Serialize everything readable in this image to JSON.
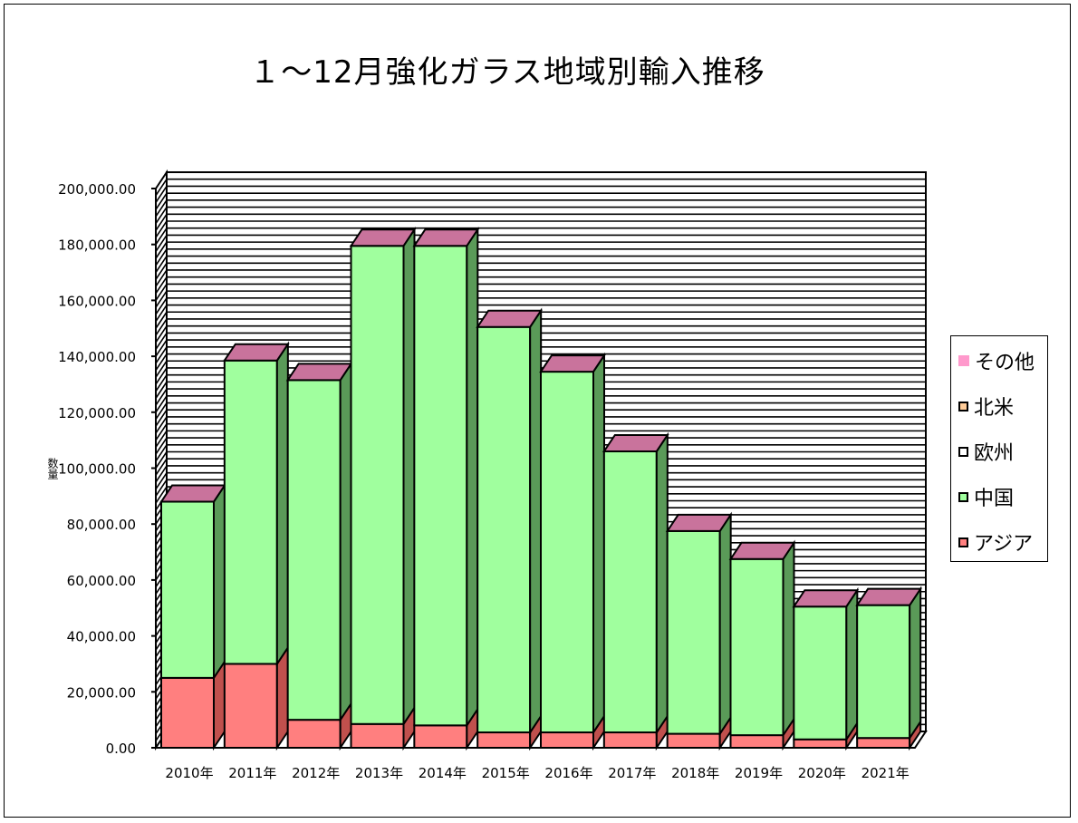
{
  "chart_data": {
    "type": "bar",
    "stacked": true,
    "three_d": true,
    "title": "１～12月強化ガラス地域別輸入推移",
    "ylabel": "数量",
    "xlabel": "",
    "ylim": [
      0,
      200000
    ],
    "y_ticks": [
      "0.00",
      "20,000.00",
      "40,000.00",
      "60,000.00",
      "80,000.00",
      "100,000.00",
      "120,000.00",
      "140,000.00",
      "160,000.00",
      "180,000.00",
      "200,000.00"
    ],
    "grid": true,
    "legend_position": "right",
    "categories": [
      "2010年",
      "2011年",
      "2012年",
      "2013年",
      "2014年",
      "2015年",
      "2016年",
      "2017年",
      "2018年",
      "2019年",
      "2020年",
      "2021年"
    ],
    "series": [
      {
        "name": "アジア",
        "color": "#ff7f7f",
        "values": [
          25000,
          30000,
          10000,
          8500,
          8000,
          5500,
          5500,
          5500,
          5000,
          4500,
          3000,
          3500
        ]
      },
      {
        "name": "中国",
        "color": "#a0ff9e",
        "values": [
          63000,
          108500,
          121500,
          171000,
          171500,
          145000,
          129000,
          100500,
          72500,
          63000,
          47500,
          47500
        ]
      },
      {
        "name": "欧州",
        "color": "#ffffff",
        "values": [
          0,
          0,
          0,
          0,
          0,
          0,
          0,
          0,
          0,
          0,
          0,
          0
        ]
      },
      {
        "name": "北米",
        "color": "#ffcc99",
        "values": [
          0,
          0,
          0,
          0,
          0,
          0,
          0,
          0,
          0,
          0,
          0,
          0
        ]
      },
      {
        "name": "その他",
        "color": "#ff99cc",
        "values": [
          0,
          0,
          0,
          0,
          0,
          0,
          0,
          0,
          0,
          0,
          0,
          0
        ]
      }
    ],
    "legend_order": [
      "その他",
      "北米",
      "欧州",
      "中国",
      "アジア"
    ],
    "top_color": "#c9739c",
    "asia_side_color": "#c0504d",
    "china_side_color": "#5a9a58"
  }
}
